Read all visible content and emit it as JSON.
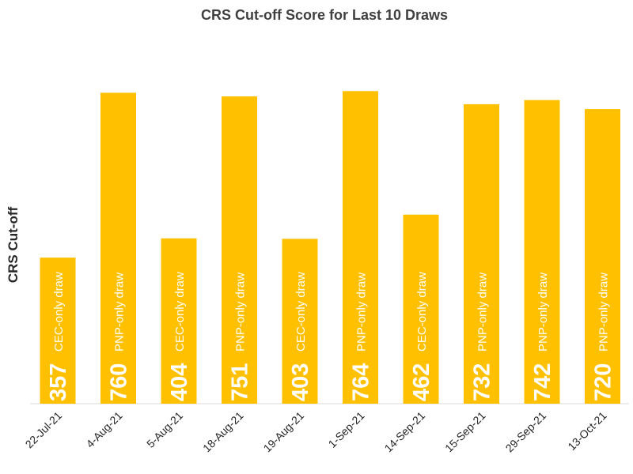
{
  "chart_data": {
    "type": "bar",
    "title": "CRS Cut-off Score for Last 10 Draws",
    "xlabel": "",
    "ylabel": "CRS Cut-off",
    "categories": [
      "22-Jul-21",
      "4-Aug-21",
      "5-Aug-21",
      "18-Aug-21",
      "19-Aug-21",
      "1-Sep-21",
      "14-Sep-21",
      "15-Sep-21",
      "29-Sep-21",
      "13-Oct-21"
    ],
    "values": [
      357,
      760,
      404,
      751,
      403,
      764,
      462,
      732,
      742,
      720
    ],
    "labels": [
      "CEC-only draw",
      "PNP-only draw",
      "CEC-only draw",
      "PNP-only draw",
      "CEC-only draw",
      "PNP-only draw",
      "CEC-only draw",
      "PNP-only draw",
      "PNP-only draw",
      "PNP-only draw"
    ],
    "ylim": [
      0,
      780
    ],
    "bar_color": "#FFC000",
    "grid": false,
    "legend": "none"
  }
}
